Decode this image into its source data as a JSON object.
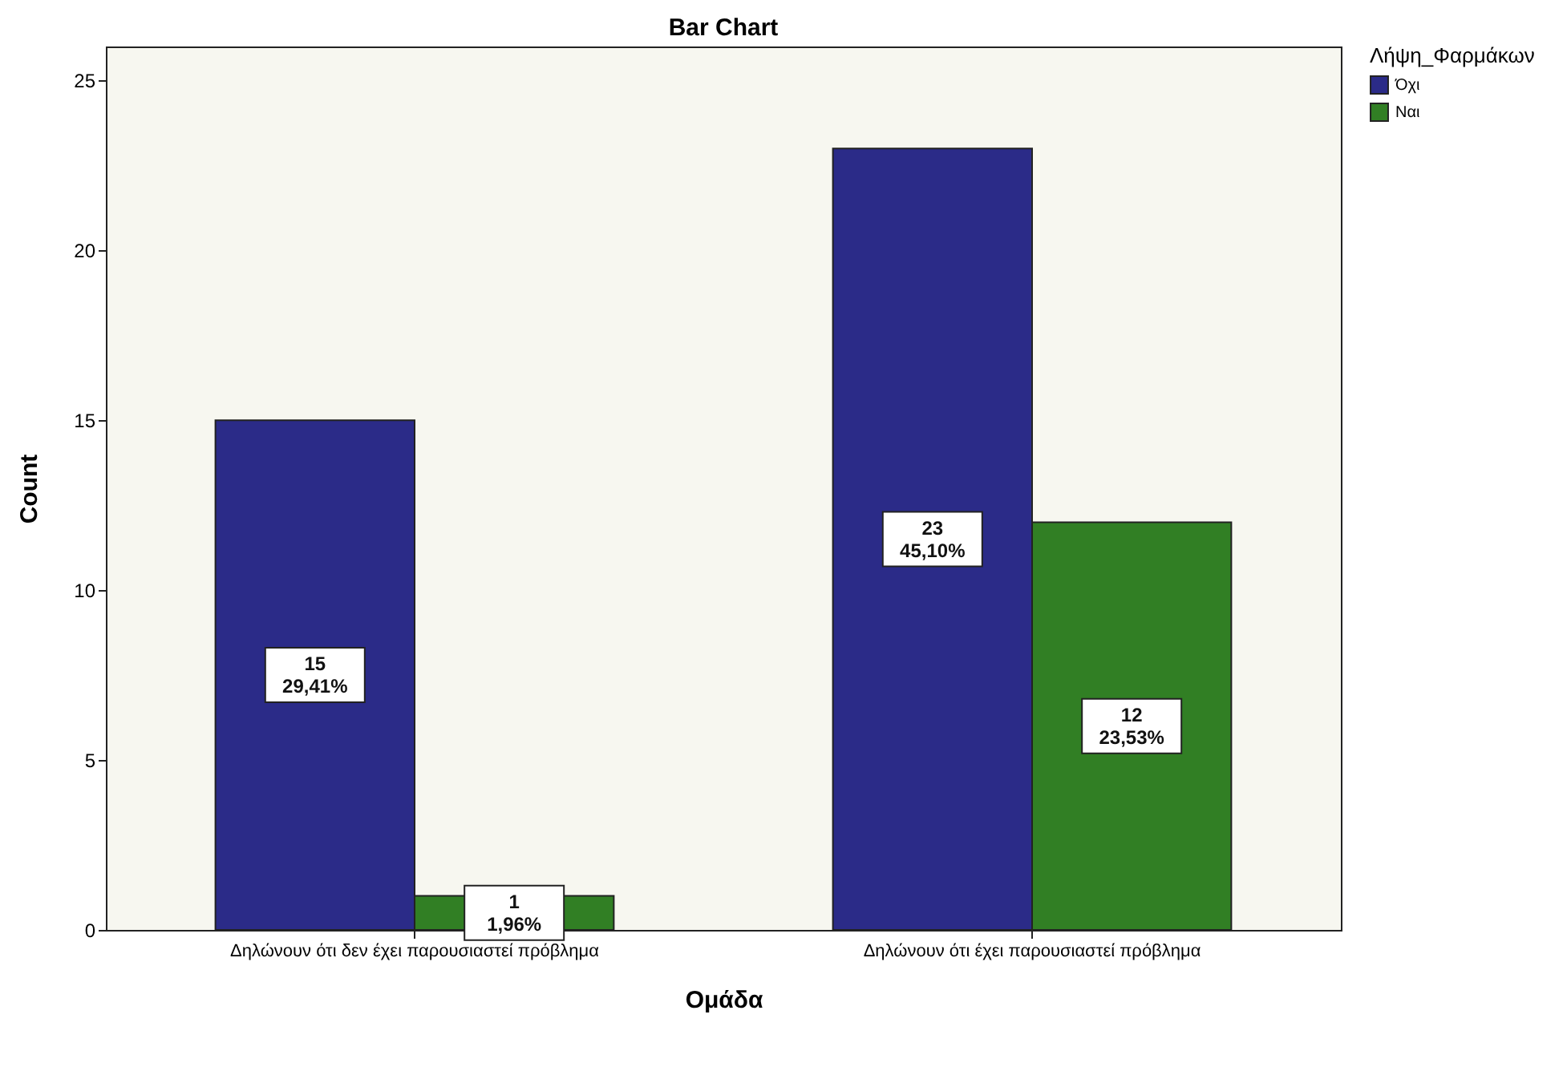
{
  "chart_data": {
    "type": "bar",
    "title": "Bar Chart",
    "xlabel": "Ομάδα",
    "ylabel": "Count",
    "legend_title": "Λήψη_Φαρμάκων",
    "categories": [
      "Δηλώνουν ότι δεν έχει παρουσιαστεί πρόβλημα",
      "Δηλώνουν ότι έχει παρουσιαστεί πρόβλημα"
    ],
    "series": [
      {
        "name": "Όχι",
        "color": "#2b2b88",
        "values": [
          15,
          23
        ],
        "value_labels": [
          "15\n29,41%",
          "23\n45,10%"
        ]
      },
      {
        "name": "Ναι",
        "color": "#317f24",
        "values": [
          1,
          12
        ],
        "value_labels": [
          "1\n1,96%",
          "12\n23,53%"
        ]
      }
    ],
    "ylim": [
      0,
      26
    ],
    "yticks": [
      0,
      5,
      10,
      15,
      20,
      25
    ],
    "grid": false,
    "legend": "top right"
  }
}
